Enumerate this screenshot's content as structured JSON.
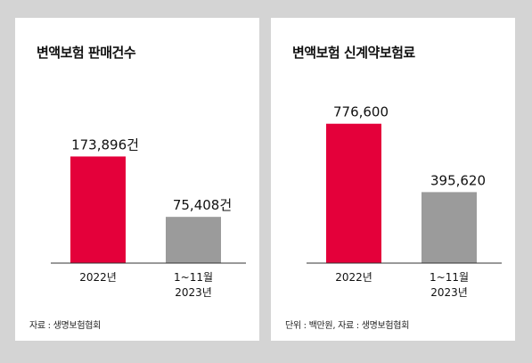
{
  "colors": {
    "bar_2022": "#e4003a",
    "bar_2023": "#9b9b9b",
    "background": "#d4d4d4",
    "panel": "#ffffff"
  },
  "chart_data": [
    {
      "type": "bar",
      "title": "변액보험 판매건수",
      "categories": [
        "2022년",
        [
          "1~11월",
          "2023년"
        ]
      ],
      "values": [
        173896,
        75408
      ],
      "value_labels": [
        "173,896건",
        "75,408건"
      ],
      "bar_colors": [
        "#e4003a",
        "#9b9b9b"
      ],
      "ylim": [
        0,
        240000
      ],
      "grid": false,
      "source": "자료 : 생명보험협회"
    },
    {
      "type": "bar",
      "title": "변액보험 신계약보험료",
      "categories": [
        "2022년",
        [
          "1~11월",
          "2023년"
        ]
      ],
      "values": [
        776600,
        395620
      ],
      "value_labels": [
        "776,600",
        "395,620"
      ],
      "bar_colors": [
        "#e4003a",
        "#9b9b9b"
      ],
      "ylim": [
        0,
        820000
      ],
      "grid": false,
      "source": "단위 : 백만원, 자료 : 생명보험협회"
    }
  ]
}
